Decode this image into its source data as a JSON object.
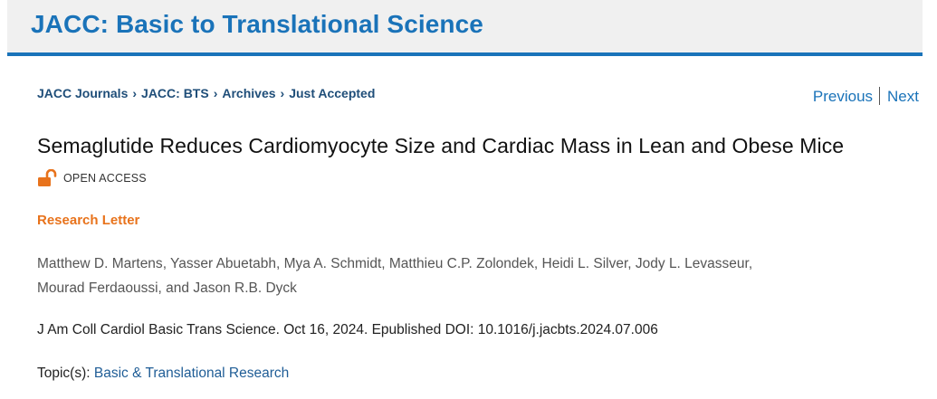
{
  "header": {
    "journal_title": "JACC: Basic to Translational Science"
  },
  "breadcrumb": {
    "items": [
      "JACC Journals",
      "JACC: BTS",
      "Archives",
      "Just Accepted"
    ],
    "separator": "›"
  },
  "pager": {
    "previous_label": "Previous",
    "next_label": "Next"
  },
  "article": {
    "title": "Semaglutide Reduces Cardiomyocyte Size and Cardiac Mass in Lean and Obese Mice",
    "access_label": "OPEN ACCESS",
    "access_icon": "unlocked-padlock-icon",
    "type": "Research Letter",
    "authors": [
      "Matthew D. Martens",
      "Yasser Abuetabh",
      "Mya A. Schmidt",
      "Matthieu C.P. Zolondek",
      "Heidi L. Silver",
      "Jody L. Levasseur",
      "Mourad Ferdaoussi",
      "Jason R.B. Dyck"
    ],
    "author_separators": [
      ", ",
      ", ",
      ", ",
      ", ",
      ", ",
      ", ",
      ", and ",
      ""
    ],
    "citation": "J Am Coll Cardiol Basic Trans Science. Oct 16, 2024. Epublished DOI: 10.1016/j.jacbts.2024.07.006",
    "topics_label": "Topic(s):",
    "topics": [
      "Basic & Translational Research"
    ]
  },
  "colors": {
    "brand_blue": "#1a73b9",
    "breadcrumb_navy": "#1f4e79",
    "accent_orange": "#e8731c",
    "header_bg": "#f0f0f0"
  }
}
